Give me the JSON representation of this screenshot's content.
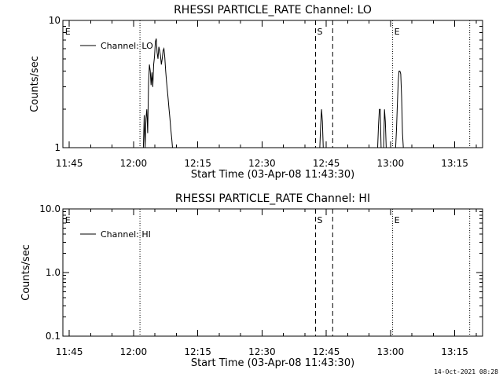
{
  "chart_data": [
    {
      "type": "line",
      "title": "RHESSI PARTICLE_RATE Channel: LO",
      "xlabel": "Start Time (03-Apr-08 11:43:30)",
      "ylabel": "Counts/sec",
      "yscale": "log",
      "ylim": [
        1,
        10
      ],
      "ytick_labels": [
        "1",
        "10"
      ],
      "ytick_values": [
        1,
        10
      ],
      "xlim_minutes": [
        -1.5,
        96.5
      ],
      "xtick_labels": [
        "11:45",
        "12:00",
        "12:15",
        "12:30",
        "12:45",
        "13:00",
        "13:15"
      ],
      "xtick_minutes": [
        0,
        15,
        30,
        45,
        60,
        75,
        90
      ],
      "legend_location": "upper-left",
      "series": [
        {
          "name": "Channel: LO",
          "x_minutes": [
            17.3,
            17.5,
            17.7,
            17.9,
            18.1,
            18.3,
            18.5,
            18.7,
            18.9,
            19.1,
            19.3,
            19.5,
            19.7,
            19.9,
            20.1,
            20.3,
            20.5,
            20.7,
            20.9,
            21.1,
            21.3,
            21.5,
            21.7,
            21.9,
            22.1,
            22.3,
            22.5,
            22.7,
            22.9,
            23.1,
            23.3,
            23.5,
            23.7,
            23.9,
            24.1,
            24.3,
            24.5,
            24.7,
            24.9,
            25.1,
            25.3,
            25.5,
            25.7,
            25.9,
            26.1,
            26.3,
            26.5,
            26.7,
            26.9,
            27.1,
            27.3,
            27.5,
            27.7,
            27.9,
            28.1,
            28.3,
            58.5,
            58.7,
            58.9,
            59.1,
            59.3,
            72.0,
            72.2,
            72.4,
            72.6,
            72.8,
            73.4,
            73.6,
            73.8,
            74.0,
            76.2,
            76.4,
            76.6,
            76.8,
            77.0,
            77.2,
            77.4,
            77.6,
            77.8,
            78.0
          ],
          "y": [
            1,
            1.8,
            1,
            1.7,
            2.0,
            1.3,
            3.2,
            4.5,
            4.0,
            3.1,
            3.9,
            3.0,
            4.5,
            5.2,
            6.8,
            7.2,
            5.6,
            5.0,
            6.2,
            5.8,
            5.3,
            4.5,
            5.0,
            5.8,
            6.0,
            5.1,
            4.0,
            3.3,
            2.8,
            2.4,
            2.0,
            1.7,
            1.4,
            1.2,
            1.0,
            1,
            1,
            1,
            1,
            1,
            1,
            1,
            1,
            1,
            1,
            1,
            1,
            1,
            1,
            1,
            1,
            1,
            1,
            1,
            1,
            1,
            1,
            1.5,
            2.0,
            1.6,
            1,
            1,
            1.5,
            2.0,
            2.0,
            1,
            1,
            2.0,
            1.6,
            1,
            1,
            1.4,
            2.2,
            3.3,
            4.0,
            4.0,
            3.8,
            2.5,
            1.3,
            1
          ]
        }
      ]
    },
    {
      "type": "line",
      "title": "RHESSI PARTICLE_RATE Channel: HI",
      "xlabel": "Start Time (03-Apr-08 11:43:30)",
      "ylabel": "Counts/sec",
      "yscale": "log",
      "ylim": [
        0.1,
        10
      ],
      "ytick_labels": [
        "0.1",
        "1.0",
        "10.0"
      ],
      "ytick_values": [
        0.1,
        1,
        10
      ],
      "xlim_minutes": [
        -1.5,
        96.5
      ],
      "xtick_labels": [
        "11:45",
        "12:00",
        "12:15",
        "12:30",
        "12:45",
        "13:00",
        "13:15"
      ],
      "xtick_minutes": [
        0,
        15,
        30,
        45,
        60,
        75,
        90
      ],
      "legend_location": "upper-left",
      "series": [
        {
          "name": "Channel: HI",
          "x_minutes": [],
          "y": []
        }
      ]
    }
  ],
  "markers": {
    "E_label": "E",
    "S_label": "S",
    "left_E_minutes": -1.0,
    "dotted_minutes": [
      16.5,
      75.5,
      93.5
    ],
    "dashed_minutes": [
      57.5,
      61.5
    ],
    "S_minutes": 57.5,
    "E_minutes": 75.5
  },
  "footer": "14-Oct-2021 08:28"
}
